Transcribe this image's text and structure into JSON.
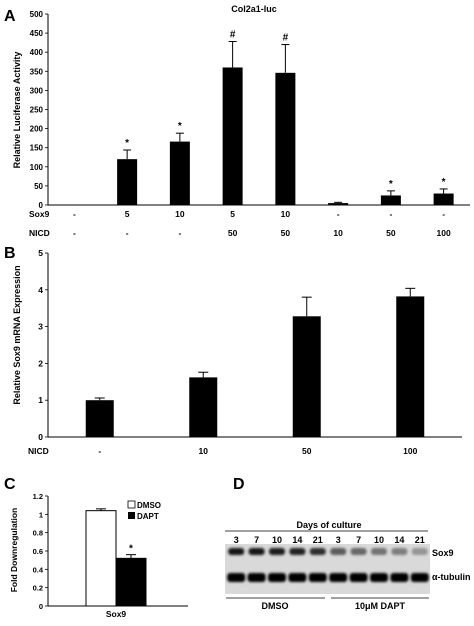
{
  "panels": {
    "a": "A",
    "b": "B",
    "c": "C",
    "d": "D"
  },
  "chart_data": [
    {
      "panel": "A",
      "type": "bar",
      "title": "Col2a1-luc",
      "ylabel": "Relative Luciferase Activity",
      "ylim": [
        0,
        500
      ],
      "yticks": [
        "0",
        "50",
        "100",
        "150",
        "200",
        "250",
        "300",
        "350",
        "400",
        "450",
        "500"
      ],
      "grid": false,
      "row_labels": [
        "Sox9",
        "NICD"
      ],
      "conditions": [
        {
          "sox9": "-",
          "nicd": "-"
        },
        {
          "sox9": "5",
          "nicd": "-"
        },
        {
          "sox9": "10",
          "nicd": "-"
        },
        {
          "sox9": "5",
          "nicd": "50"
        },
        {
          "sox9": "10",
          "nicd": "50"
        },
        {
          "sox9": "-",
          "nicd": "10"
        },
        {
          "sox9": "-",
          "nicd": "50"
        },
        {
          "sox9": "-",
          "nicd": "100"
        }
      ],
      "values": [
        1,
        120,
        166,
        360,
        346,
        5,
        25,
        30
      ],
      "errors": [
        0,
        24,
        22,
        68,
        74,
        2,
        12,
        12
      ],
      "annotations": [
        "",
        "*",
        "*",
        "#",
        "#",
        "",
        "*",
        "*"
      ],
      "bar_color": "#000000"
    },
    {
      "panel": "B",
      "type": "bar",
      "ylabel": "Relative Sox9 mRNA Expression",
      "ylim": [
        0,
        5
      ],
      "yticks": [
        "0",
        "1",
        "2",
        "3",
        "4",
        "5"
      ],
      "grid": false,
      "row_label": "NICD",
      "categories": [
        "-",
        "10",
        "50",
        "100"
      ],
      "values": [
        1.0,
        1.62,
        3.28,
        3.82
      ],
      "errors": [
        0.06,
        0.14,
        0.52,
        0.22
      ],
      "bar_color": "#000000"
    },
    {
      "panel": "C",
      "type": "bar",
      "ylabel": "Fold Downregulation",
      "ylim": [
        0,
        1.2
      ],
      "yticks": [
        "0",
        "0.2",
        "0.4",
        "0.6",
        "0.8",
        "1",
        "1.2"
      ],
      "grid": false,
      "categories": [
        "Sox9"
      ],
      "series": [
        {
          "name": "DMSO",
          "values": [
            1.04
          ],
          "errors": [
            0.02
          ],
          "color": "#ffffff"
        },
        {
          "name": "DAPT",
          "values": [
            0.52
          ],
          "errors": [
            0.04
          ],
          "color": "#000000"
        }
      ],
      "annotations": [
        "",
        "*"
      ],
      "legend": "top-right"
    }
  ],
  "blot": {
    "header": "Days of culture",
    "days": [
      "3",
      "7",
      "10",
      "14",
      "21",
      "3",
      "7",
      "10",
      "14",
      "21"
    ],
    "bands": [
      "Sox9",
      "α-tubulin"
    ],
    "groups": [
      "DMSO",
      "10μM DAPT"
    ],
    "sox9_intensity": [
      0.9,
      0.92,
      0.88,
      0.85,
      0.8,
      0.6,
      0.55,
      0.5,
      0.45,
      0.35
    ],
    "tubulin_intensity": [
      1,
      1,
      1,
      1,
      1,
      1,
      1,
      1,
      1,
      1
    ]
  }
}
